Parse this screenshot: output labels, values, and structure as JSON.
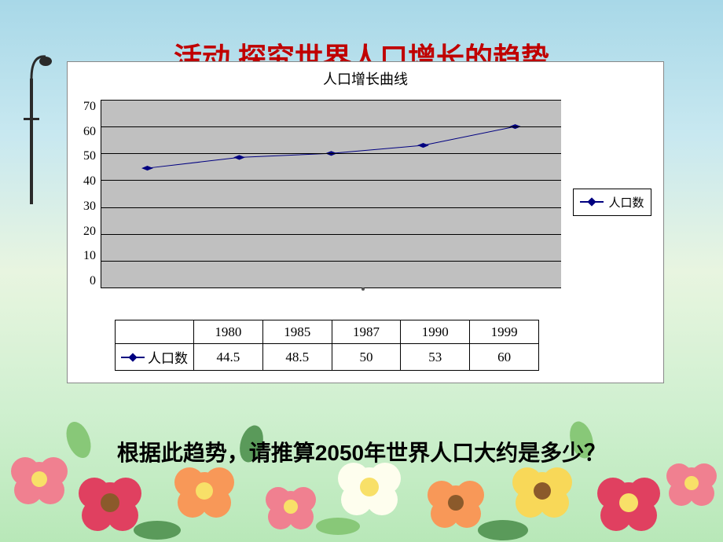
{
  "title_behind": "活动  探究世界人口增长的趋势",
  "chart": {
    "type": "line",
    "title": "人口增长曲线",
    "title_fontsize": 18,
    "series_name": "人口数",
    "categories": [
      "1980",
      "1985",
      "1987",
      "1990",
      "1999"
    ],
    "values": [
      44.5,
      48.5,
      50,
      53,
      60
    ],
    "line_color": "#000080",
    "marker_shape": "diamond",
    "marker_color": "#000080",
    "marker_size": 9,
    "line_width": 2,
    "ylim": [
      0,
      70
    ],
    "ytick_step": 10,
    "yticks": [
      0,
      10,
      20,
      30,
      40,
      50,
      60,
      70
    ],
    "plot_background": "#c0c0c0",
    "grid_color": "#000000",
    "chart_background": "#ffffff",
    "tick_fontsize": 16,
    "table_fontsize": 17,
    "legend_position": "right"
  },
  "question_text": "根据此趋势，请推算2050年世界人口大约是多少？",
  "question_color": "#000000",
  "question_fontsize": 28,
  "flowers": {
    "pink": "#f08090",
    "deep_pink": "#e04060",
    "orange": "#f89858",
    "yellow": "#f8d858",
    "white": "#fefeee",
    "center_yellow": "#f8e068",
    "center_brown": "#8b5a2b",
    "leaf_green": "#5a9a5a",
    "leaf_light": "#88c878"
  }
}
